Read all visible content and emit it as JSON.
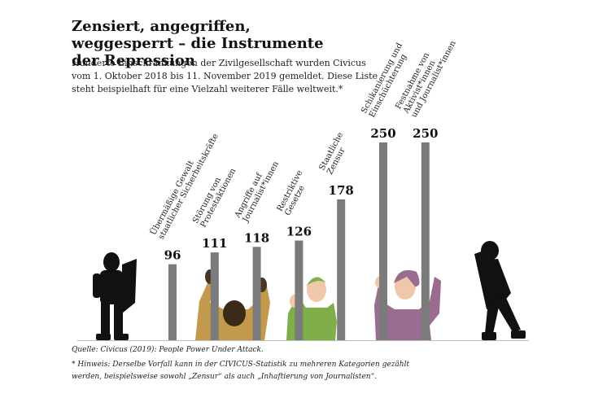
{
  "chart_data": {
    "type": "bar",
    "title": "Zensiert, angegriffen, weggesperrt – die Instrumente der Repression",
    "subtitle": "Hunderte Einschränkungen der Zivilgesellschaft wurden Civicus vom 1. Oktober 2018 bis 11. November 2019 gemeldet. Diese Liste steht beispielhaft für eine Vielzahl weiterer Fälle weltweit.*",
    "categories": [
      "Übermäßige Gewalt\nstaatlicher Sicherheitskräfte",
      "Störung von\nProtestaktionen",
      "Angriffe auf\nJournalist*innen",
      "Restriktive\nGesetze",
      "Staatliche\nZensur",
      "Schikanierung und\nEinschüchterung",
      "Festnahme von\nAktivist*innen\nund Journalist*innen"
    ],
    "values": [
      96,
      111,
      118,
      126,
      178,
      250,
      250
    ],
    "color": "#7b7b7b",
    "ylim": [
      0,
      250
    ],
    "source": "Quelle: Civicus (2019): People Power Under Attack.",
    "note": "* Hinweis: Derselbe Vorfall kann in der CIVICUS-Statistik zu mehreren Kategorien gezählt werden, beispielsweise sowohl „Zensur“ als auch „Inhaftierung von Journalisten“."
  }
}
